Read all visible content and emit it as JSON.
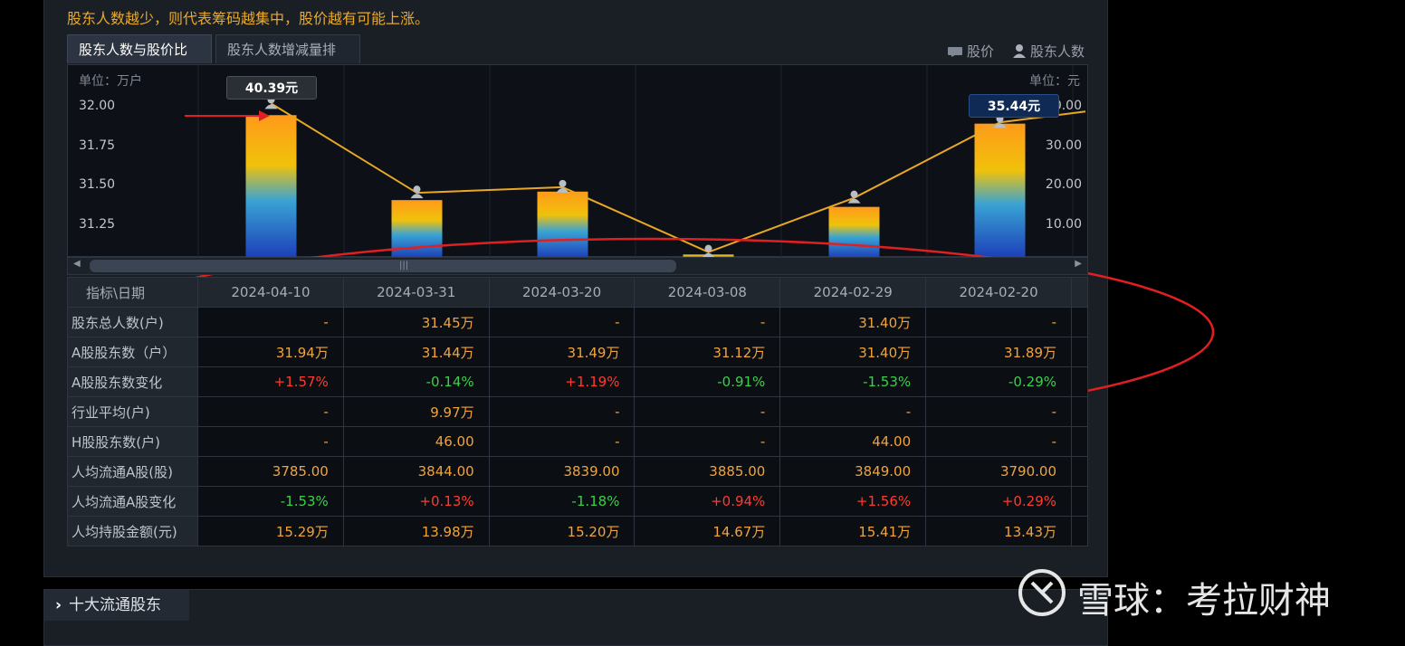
{
  "intro_text": "股东人数越少，则代表筹码越集中，股价越有可能上涨。",
  "tabs": [
    {
      "label": "股东人数与股价比较",
      "active": true
    },
    {
      "label": "股东人数增减量排名",
      "active": false
    }
  ],
  "legend": {
    "price": "股价",
    "holders": "股东人数"
  },
  "chart": {
    "unit_left": "单位：万户",
    "unit_right": "单位：元",
    "left_ticks": [
      "32.00",
      "31.75",
      "31.50",
      "31.25"
    ],
    "right_ticks": [
      "40.00",
      "30.00",
      "20.00",
      "10.00"
    ],
    "callout_first": "40.39元",
    "callout_last": "35.44元"
  },
  "chart_data": {
    "type": "bar+line",
    "title": "股东人数与股价比较",
    "categories": [
      "2024-04-10",
      "2024-03-31",
      "2024-03-20",
      "2024-03-08",
      "2024-02-29",
      "2024-02-20"
    ],
    "series": [
      {
        "name": "股东人数",
        "unit": "万户",
        "axis": "left",
        "values": [
          31.94,
          31.44,
          31.49,
          31.12,
          31.4,
          31.89
        ]
      },
      {
        "name": "股价",
        "unit": "元",
        "axis": "right",
        "values": [
          40.39,
          17.0,
          18.5,
          1.5,
          15.7,
          35.44
        ]
      }
    ],
    "ylim_left": [
      31.1,
      32.0
    ],
    "ylim_right": [
      0,
      40.0
    ],
    "ylabel_left": "单位：万户",
    "ylabel_right": "单位：元"
  },
  "table": {
    "corner": "指标\\日期",
    "dates": [
      "2024-04-10",
      "2024-03-31",
      "2024-03-20",
      "2024-03-08",
      "2024-02-29",
      "2024-02-20"
    ],
    "rows": [
      {
        "label": "股东总人数(户)",
        "cells": [
          "-",
          "31.45万",
          "-",
          "-",
          "31.40万",
          "-"
        ]
      },
      {
        "label": "A股股东数（户）",
        "cells": [
          "31.94万",
          "31.44万",
          "31.49万",
          "31.12万",
          "31.40万",
          "31.89万"
        ]
      },
      {
        "label": "A股股东数变化",
        "cells": [
          "+1.57%",
          "-0.14%",
          "+1.19%",
          "-0.91%",
          "-1.53%",
          "-0.29%"
        ]
      },
      {
        "label": "行业平均(户)",
        "cells": [
          "-",
          "9.97万",
          "-",
          "-",
          "-",
          "-"
        ]
      },
      {
        "label": "H股股东数(户)",
        "cells": [
          "-",
          "46.00",
          "-",
          "-",
          "44.00",
          "-"
        ]
      },
      {
        "label": "人均流通A股(股)",
        "cells": [
          "3785.00",
          "3844.00",
          "3839.00",
          "3885.00",
          "3849.00",
          "3790.00"
        ]
      },
      {
        "label": "人均流通A股变化",
        "cells": [
          "-1.53%",
          "+0.13%",
          "-1.18%",
          "+0.94%",
          "+1.56%",
          "+0.29%"
        ]
      },
      {
        "label": "人均持股金额(元)",
        "cells": [
          "15.29万",
          "13.98万",
          "15.20万",
          "14.67万",
          "15.41万",
          "13.43万"
        ]
      }
    ]
  },
  "section": {
    "title": "十大流通股东"
  },
  "watermark": "雪球：考拉财神",
  "colors": {
    "accent_orange": "#e9a92a",
    "up": "#ff3b30",
    "down": "#3ccf4a",
    "line": "#e8a824"
  }
}
